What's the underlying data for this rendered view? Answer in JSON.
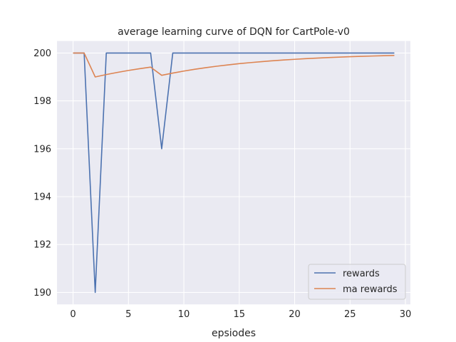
{
  "chart_data": {
    "type": "line",
    "title": "average learning curve of DQN for CartPole-v0",
    "xlabel": "epsiodes",
    "ylabel": "",
    "x": [
      0,
      1,
      2,
      3,
      4,
      5,
      6,
      7,
      8,
      9,
      10,
      11,
      12,
      13,
      14,
      15,
      16,
      17,
      18,
      19,
      20,
      21,
      22,
      23,
      24,
      25,
      26,
      27,
      28,
      29
    ],
    "xlim": [
      -1.45,
      30.45
    ],
    "ylim": [
      189.5,
      200.5
    ],
    "xticks": [
      0,
      5,
      10,
      15,
      20,
      25,
      30
    ],
    "yticks": [
      190,
      192,
      194,
      196,
      198,
      200
    ],
    "grid": true,
    "legend_position": "lower right",
    "series": [
      {
        "name": "rewards",
        "color": "#4c72b0",
        "values": [
          200,
          200,
          190,
          200,
          200,
          200,
          200,
          200,
          196,
          200,
          200,
          200,
          200,
          200,
          200,
          200,
          200,
          200,
          200,
          200,
          200,
          200,
          200,
          200,
          200,
          200,
          200,
          200,
          200,
          200
        ]
      },
      {
        "name": "ma rewards",
        "color": "#dd8452",
        "values": [
          200,
          200,
          199.0,
          199.1,
          199.19,
          199.271,
          199.344,
          199.41,
          199.069,
          199.162,
          199.246,
          199.321,
          199.389,
          199.45,
          199.505,
          199.555,
          199.599,
          199.639,
          199.675,
          199.708,
          199.737,
          199.763,
          199.787,
          199.808,
          199.828,
          199.845,
          199.86,
          199.874,
          199.887,
          199.898
        ]
      }
    ]
  },
  "colors": {
    "plot_background": "#eaeaf2",
    "grid": "#ffffff",
    "text": "#262626"
  }
}
